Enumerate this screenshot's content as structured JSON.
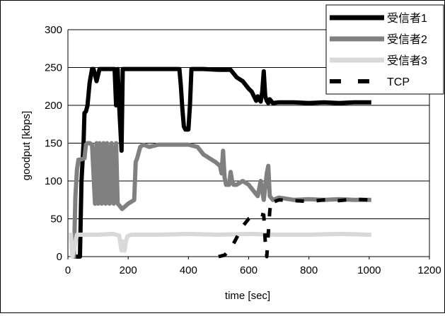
{
  "chart_data": {
    "type": "line",
    "xlabel": "time [sec]",
    "ylabel": "goodput [kbps]",
    "xlim": [
      0,
      1200
    ],
    "ylim": [
      0,
      300
    ],
    "xticks": [
      0,
      200,
      400,
      600,
      800,
      1000,
      1200
    ],
    "yticks": [
      0,
      50,
      100,
      150,
      200,
      250,
      300
    ],
    "grid": "horizontal",
    "legend_position": "top-right",
    "series": [
      {
        "name": "受信者1",
        "color": "#000000",
        "dash": "solid",
        "x": [
          30,
          40,
          45,
          52,
          55,
          60,
          65,
          72,
          80,
          85,
          95,
          105,
          120,
          140,
          155,
          160,
          165,
          170,
          178,
          182,
          190,
          210,
          250,
          300,
          350,
          370,
          375,
          380,
          385,
          390,
          400,
          405,
          410,
          420,
          450,
          500,
          540,
          560,
          580,
          600,
          610,
          620,
          625,
          630,
          640,
          645,
          650,
          655,
          660,
          665,
          670,
          680,
          700,
          750,
          800,
          850,
          900,
          950,
          1000
        ],
        "y": [
          0,
          0,
          100,
          150,
          190,
          192,
          200,
          230,
          248,
          248,
          232,
          248,
          248,
          248,
          248,
          200,
          248,
          200,
          140,
          248,
          248,
          248,
          248,
          248,
          248,
          248,
          225,
          195,
          172,
          168,
          168,
          200,
          248,
          248,
          248,
          247,
          247,
          237,
          232,
          222,
          218,
          210,
          206,
          212,
          205,
          218,
          245,
          212,
          206,
          203,
          208,
          203,
          204,
          204,
          203,
          204,
          203,
          204,
          204
        ]
      },
      {
        "name": "受信者2",
        "color": "#808080",
        "dash": "solid",
        "x": [
          20,
          25,
          30,
          35,
          40,
          55,
          60,
          65,
          72,
          80,
          90,
          95,
          100,
          105,
          112,
          118,
          125,
          130,
          138,
          145,
          152,
          160,
          165,
          170,
          180,
          200,
          220,
          225,
          230,
          240,
          250,
          270,
          300,
          350,
          400,
          430,
          450,
          470,
          490,
          505,
          510,
          515,
          520,
          525,
          535,
          540,
          545,
          550,
          560,
          580,
          600,
          620,
          630,
          640,
          650,
          660,
          665,
          670,
          680,
          700,
          750,
          800,
          850,
          900,
          950,
          1000
        ],
        "y": [
          0,
          80,
          115,
          128,
          128,
          130,
          148,
          150,
          150,
          148,
          70,
          150,
          70,
          150,
          70,
          150,
          70,
          150,
          70,
          150,
          70,
          150,
          70,
          68,
          63,
          70,
          75,
          125,
          130,
          145,
          148,
          145,
          148,
          148,
          148,
          145,
          135,
          130,
          125,
          120,
          110,
          140,
          105,
          95,
          95,
          112,
          100,
          95,
          95,
          100,
          95,
          85,
          80,
          100,
          75,
          110,
          120,
          80,
          75,
          78,
          75,
          76,
          75,
          76,
          75,
          75
        ]
      },
      {
        "name": "受信者3",
        "color": "#d9d9d9",
        "dash": "solid",
        "x": [
          10,
          15,
          30,
          100,
          150,
          170,
          178,
          182,
          188,
          192,
          198,
          210,
          300,
          400,
          500,
          600,
          700,
          800,
          900,
          1000
        ],
        "y": [
          29,
          0,
          29,
          29,
          30,
          28,
          8,
          20,
          8,
          20,
          27,
          29,
          29,
          30,
          29,
          30,
          29,
          29,
          30,
          29
        ]
      },
      {
        "name": "TCP",
        "color": "#000000",
        "dash": "dashed",
        "x": [
          500,
          520,
          540,
          560,
          580,
          600,
          620,
          640,
          650,
          655,
          660,
          665,
          670,
          675,
          680,
          700,
          750,
          800,
          850,
          900,
          950,
          1000
        ],
        "y": [
          0,
          2,
          10,
          25,
          40,
          50,
          55,
          56,
          55,
          20,
          0,
          30,
          60,
          75,
          72,
          75,
          74,
          73,
          75,
          74,
          76,
          75
        ]
      }
    ]
  }
}
